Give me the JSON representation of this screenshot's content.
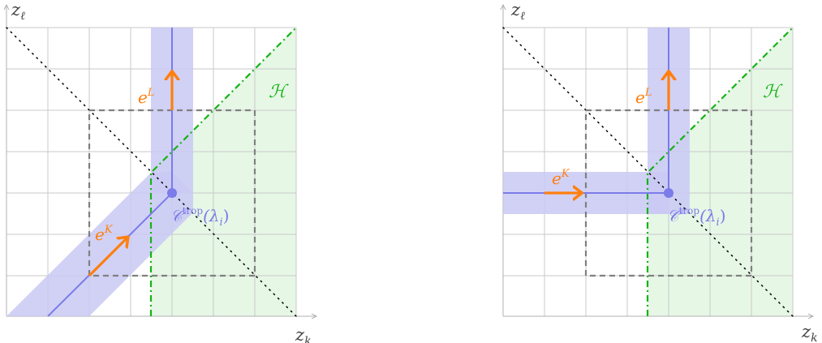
{
  "panels": [
    {
      "id": "left",
      "labels": {
        "x_axis": "z",
        "x_axis_sub": "k",
        "y_axis": "z",
        "y_axis_sub": "ℓ",
        "region": "ℋ",
        "eL_base": "e",
        "eL_sup": "L",
        "eK_base": "e",
        "eK_sup": "K",
        "point_base": "𝒞",
        "point_sup": "trop",
        "point_arg": "(λ",
        "point_sub": "i",
        "point_close": ")"
      }
    },
    {
      "id": "right",
      "labels": {
        "x_axis": "z",
        "x_axis_sub": "k",
        "y_axis": "z",
        "y_axis_sub": "ℓ",
        "region": "ℋ",
        "eL_base": "e",
        "eL_sup": "L",
        "eK_base": "e",
        "eK_sup": "K",
        "point_base": "𝒞",
        "point_sup": "trop",
        "point_arg": "(λ",
        "point_sub": "i",
        "point_close": ")"
      }
    }
  ],
  "colors": {
    "grid": "#c8c8c8",
    "axis": "#b0b0b0",
    "region_fill": "#e6f7e6",
    "region_line": "#16b316",
    "band_fill": "#c9c9f5",
    "curve": "#7b7bea",
    "arrow": "#ff7f0e",
    "box": "#808080",
    "diag": "#000000",
    "text_axis": "#444444"
  }
}
